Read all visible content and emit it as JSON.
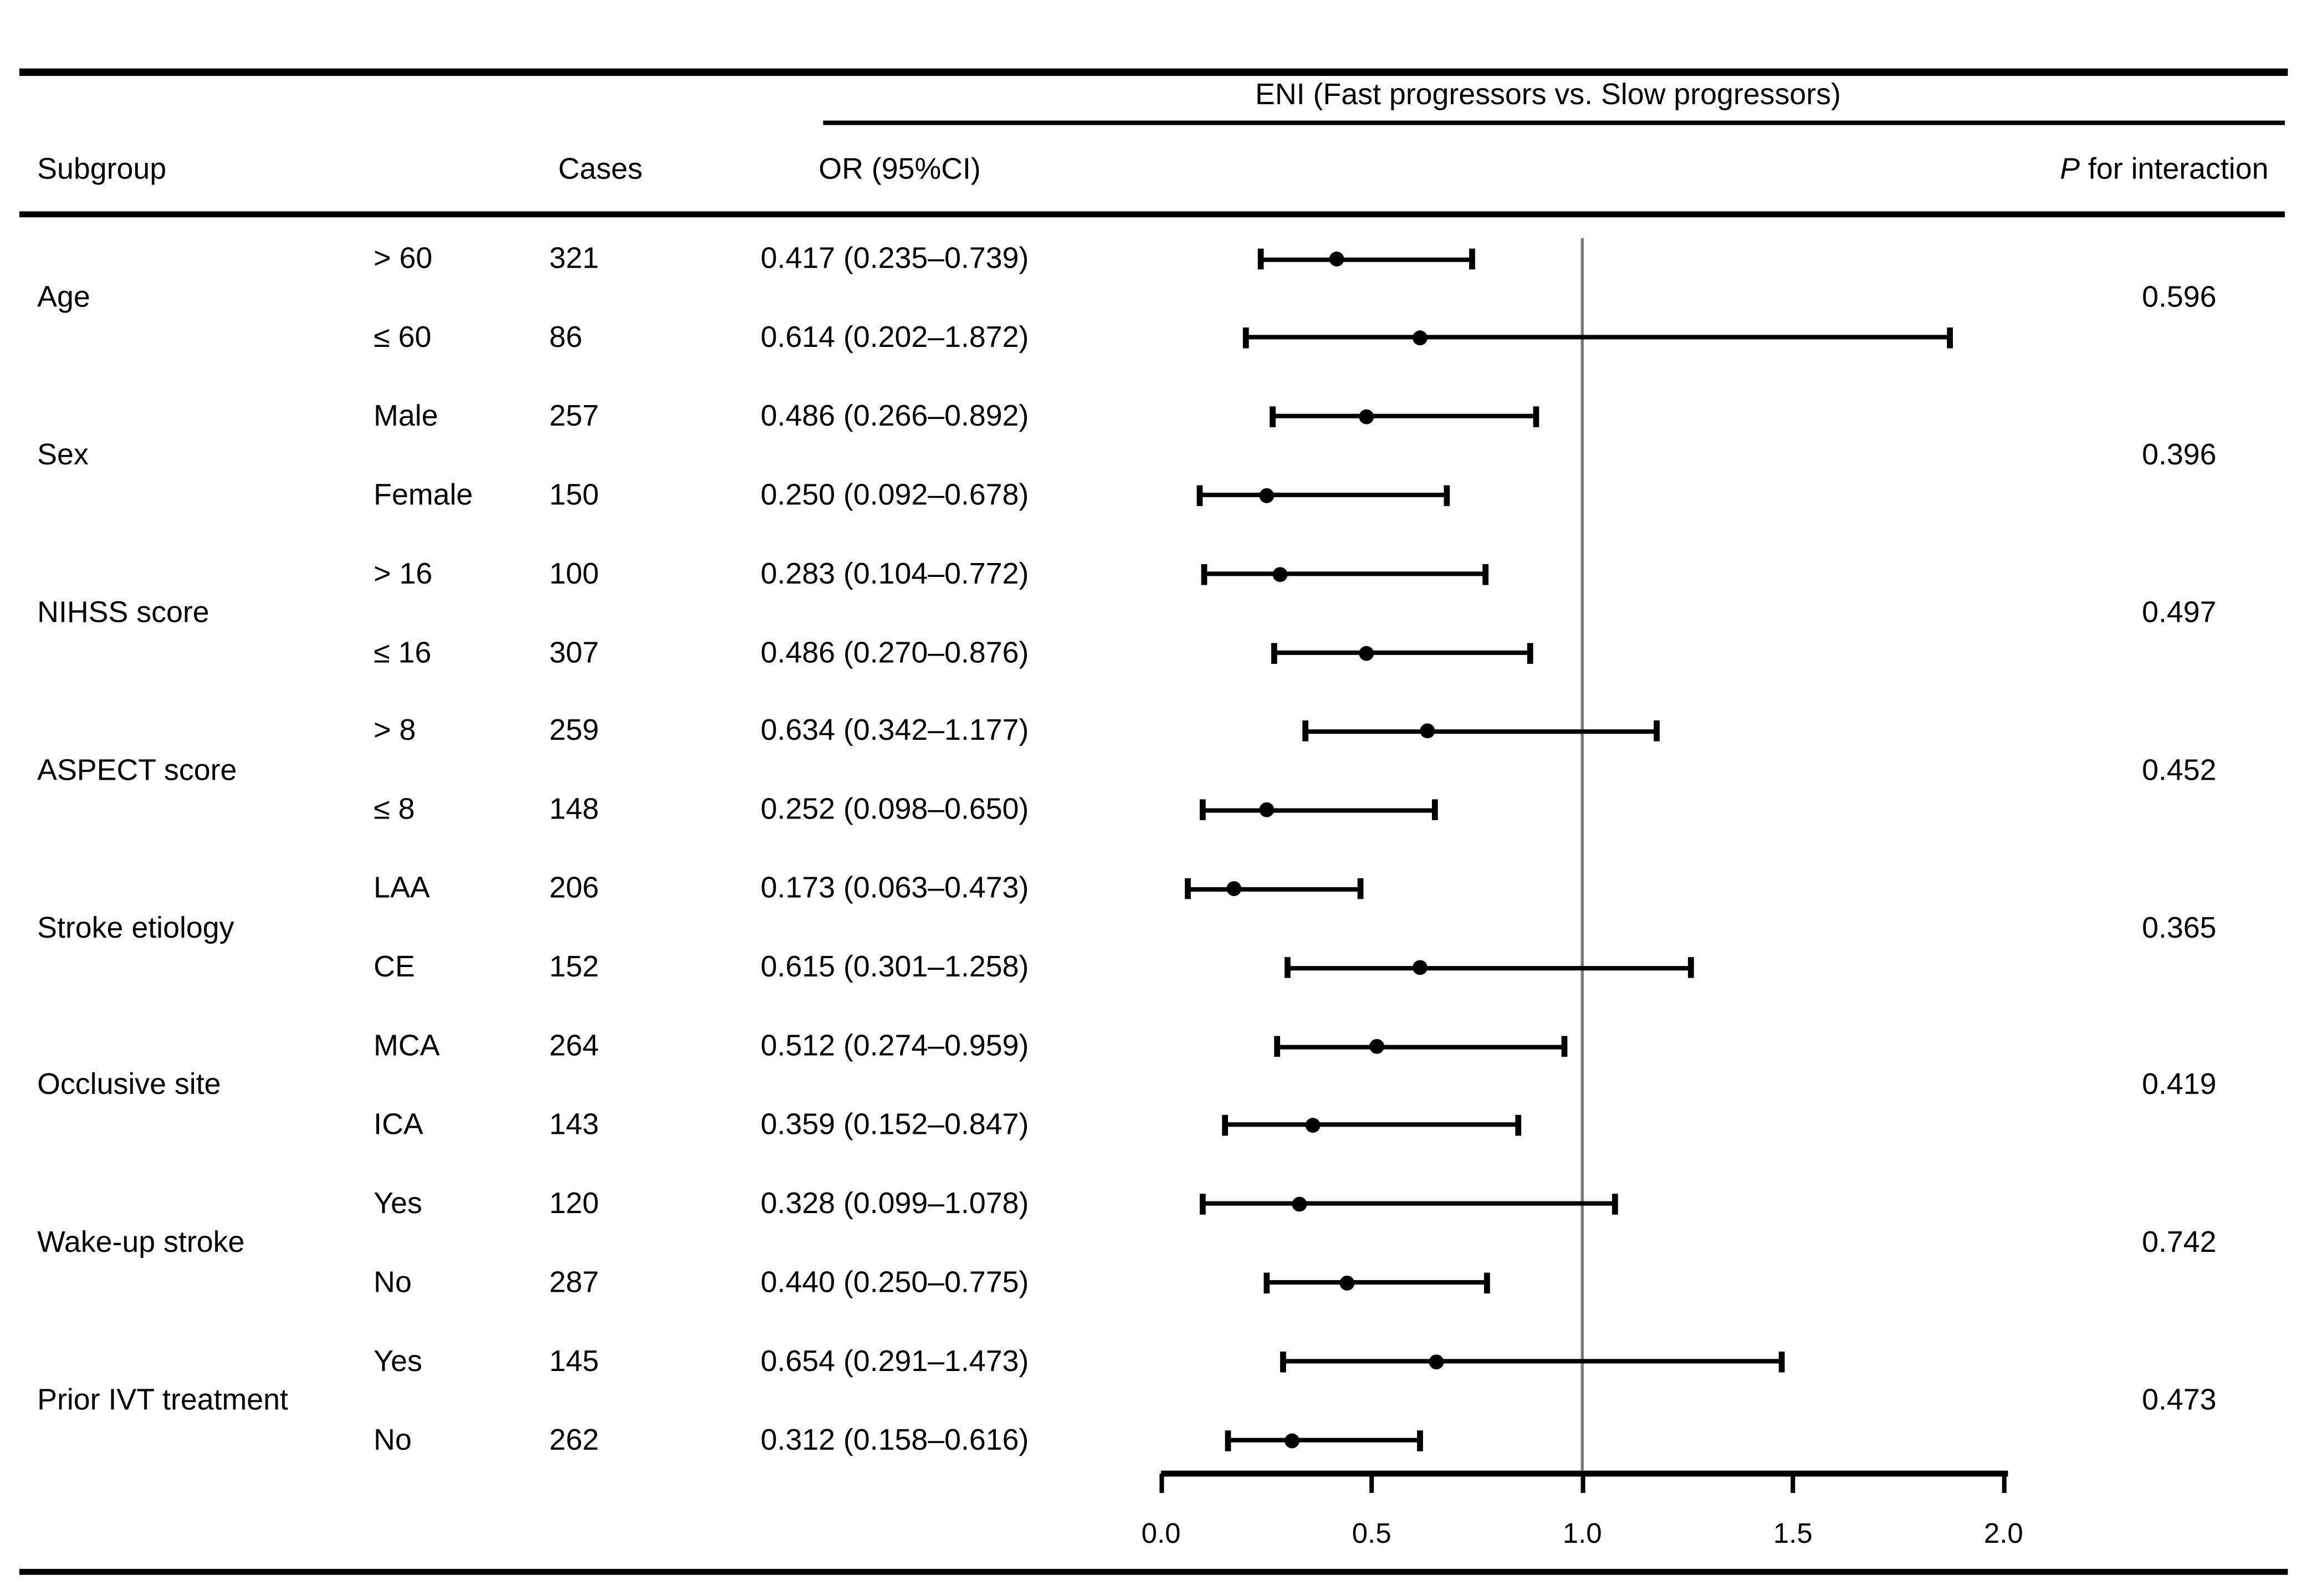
{
  "header": {
    "subgroup": "Subgroup",
    "cases": "Cases",
    "or_ci": "OR (95%CI)",
    "p_italic": "P",
    "p_rest": " for interaction"
  },
  "chart_data": {
    "type": "scatter",
    "variant": "forest-plot",
    "title": "ENI (Fast progressors vs. Slow progressors)",
    "xlim": [
      0.0,
      2.0
    ],
    "x_ticks": [
      "0.0",
      "0.5",
      "1.0",
      "1.5",
      "2.0"
    ],
    "x_tick_values": [
      0.0,
      0.5,
      1.0,
      1.5,
      2.0
    ],
    "reference_line": 1.0,
    "grid": false,
    "colors": {
      "marker": "#000000",
      "reference": "#7a7a7a",
      "text": "#000000",
      "background": "#ffffff"
    },
    "groups": [
      {
        "name": "Age",
        "p_interaction": "0.596",
        "rows": [
          {
            "level": "> 60",
            "cases": "321",
            "or": 0.417,
            "lo": 0.235,
            "hi": 0.739,
            "or_text": "0.417 (0.235–0.739)"
          },
          {
            "level": "≤ 60",
            "cases": "86",
            "or": 0.614,
            "lo": 0.202,
            "hi": 1.872,
            "or_text": "0.614 (0.202–1.872)"
          }
        ]
      },
      {
        "name": "Sex",
        "p_interaction": "0.396",
        "rows": [
          {
            "level": "Male",
            "cases": "257",
            "or": 0.486,
            "lo": 0.266,
            "hi": 0.892,
            "or_text": "0.486 (0.266–0.892)"
          },
          {
            "level": "Female",
            "cases": "150",
            "or": 0.25,
            "lo": 0.092,
            "hi": 0.678,
            "or_text": "0.250 (0.092–0.678)"
          }
        ]
      },
      {
        "name": "NIHSS score",
        "p_interaction": "0.497",
        "rows": [
          {
            "level": "> 16",
            "cases": "100",
            "or": 0.283,
            "lo": 0.104,
            "hi": 0.772,
            "or_text": "0.283 (0.104–0.772)"
          },
          {
            "level": "≤ 16",
            "cases": "307",
            "or": 0.486,
            "lo": 0.27,
            "hi": 0.876,
            "or_text": "0.486 (0.270–0.876)"
          }
        ]
      },
      {
        "name": "ASPECT score",
        "p_interaction": "0.452",
        "rows": [
          {
            "level": "> 8",
            "cases": "259",
            "or": 0.634,
            "lo": 0.342,
            "hi": 1.177,
            "or_text": "0.634 (0.342–1.177)"
          },
          {
            "level": "≤ 8",
            "cases": "148",
            "or": 0.252,
            "lo": 0.098,
            "hi": 0.65,
            "or_text": "0.252 (0.098–0.650)"
          }
        ]
      },
      {
        "name": "Stroke etiology",
        "p_interaction": "0.365",
        "rows": [
          {
            "level": "LAA",
            "cases": "206",
            "or": 0.173,
            "lo": 0.063,
            "hi": 0.473,
            "or_text": "0.173 (0.063–0.473)"
          },
          {
            "level": "CE",
            "cases": "152",
            "or": 0.615,
            "lo": 0.301,
            "hi": 1.258,
            "or_text": "0.615 (0.301–1.258)"
          }
        ]
      },
      {
        "name": "Occlusive site",
        "p_interaction": "0.419",
        "rows": [
          {
            "level": "MCA",
            "cases": "264",
            "or": 0.512,
            "lo": 0.274,
            "hi": 0.959,
            "or_text": "0.512 (0.274–0.959)"
          },
          {
            "level": "ICA",
            "cases": "143",
            "or": 0.359,
            "lo": 0.152,
            "hi": 0.847,
            "or_text": "0.359 (0.152–0.847)"
          }
        ]
      },
      {
        "name": "Wake-up stroke",
        "p_interaction": "0.742",
        "rows": [
          {
            "level": "Yes",
            "cases": "120",
            "or": 0.328,
            "lo": 0.099,
            "hi": 1.078,
            "or_text": "0.328 (0.099–1.078)"
          },
          {
            "level": "No",
            "cases": "287",
            "or": 0.44,
            "lo": 0.25,
            "hi": 0.775,
            "or_text": "0.440 (0.250–0.775)"
          }
        ]
      },
      {
        "name": "Prior IVT treatment",
        "p_interaction": "0.473",
        "rows": [
          {
            "level": "Yes",
            "cases": "145",
            "or": 0.654,
            "lo": 0.291,
            "hi": 1.473,
            "or_text": "0.654 (0.291–1.473)"
          },
          {
            "level": "No",
            "cases": "262",
            "or": 0.312,
            "lo": 0.158,
            "hi": 0.616,
            "or_text": "0.312 (0.158–0.616)"
          }
        ]
      }
    ]
  }
}
